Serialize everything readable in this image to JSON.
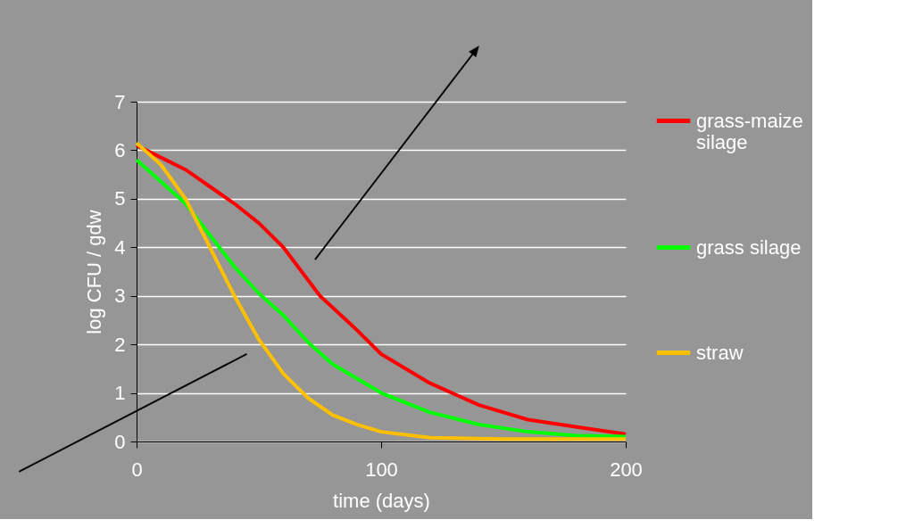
{
  "chart_data": {
    "type": "line",
    "xlabel": "time (days)",
    "ylabel": "log CFU / gdw",
    "xlim": [
      0,
      200
    ],
    "xticks": [
      0,
      100,
      200
    ],
    "ylim": [
      0,
      7
    ],
    "yticks": [
      0,
      1,
      2,
      3,
      4,
      5,
      6,
      7
    ],
    "grid": "y",
    "legend": "right",
    "marker": "none",
    "line_style": "solid",
    "series": [
      {
        "name": "grass-maize silage",
        "color": "#ff0000",
        "x": [
          0,
          10,
          20,
          30,
          40,
          50,
          60,
          75,
          90,
          100,
          120,
          140,
          160,
          180,
          200
        ],
        "values": [
          6.1,
          5.85,
          5.6,
          5.25,
          4.9,
          4.5,
          4.0,
          3.0,
          2.3,
          1.8,
          1.2,
          0.75,
          0.45,
          0.3,
          0.15
        ]
      },
      {
        "name": "grass silage",
        "color": "#00ff00",
        "x": [
          0,
          10,
          20,
          30,
          40,
          50,
          60,
          70,
          80,
          100,
          120,
          140,
          160,
          180,
          200
        ],
        "values": [
          5.8,
          5.35,
          4.9,
          4.25,
          3.6,
          3.05,
          2.6,
          2.05,
          1.6,
          1.0,
          0.6,
          0.35,
          0.2,
          0.12,
          0.1
        ]
      },
      {
        "name": "straw",
        "color": "#ffc000",
        "x": [
          0,
          10,
          20,
          30,
          40,
          50,
          60,
          70,
          80,
          90,
          100,
          120,
          150,
          200
        ],
        "values": [
          6.15,
          5.7,
          5.0,
          4.0,
          3.0,
          2.1,
          1.4,
          0.9,
          0.55,
          0.35,
          0.2,
          0.08,
          0.05,
          0.05
        ]
      }
    ]
  }
}
